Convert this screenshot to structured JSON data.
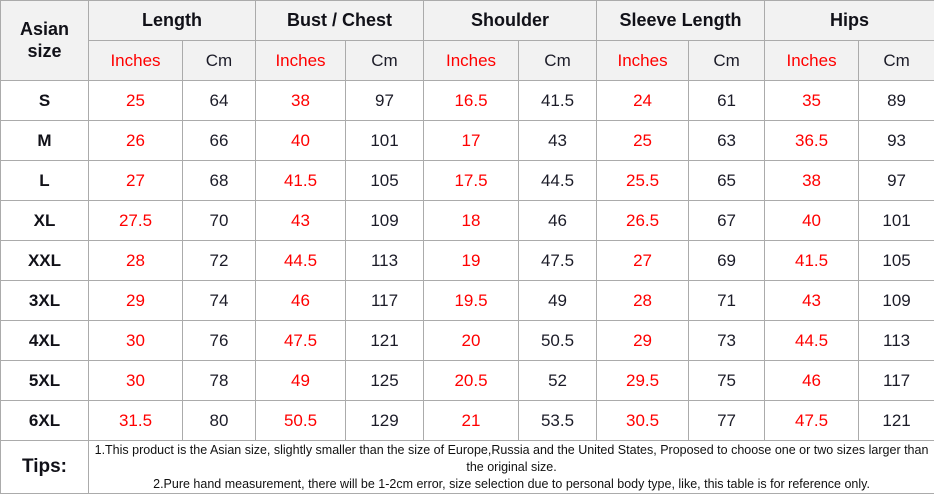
{
  "colors": {
    "accent_red": "#ff0000",
    "text_dark": "#1c1c28",
    "header_bg": "#f2f2f2",
    "grid_border": "#ababab"
  },
  "table": {
    "corner_header": "Asian size",
    "groups": [
      {
        "label": "Length"
      },
      {
        "label": "Bust / Chest"
      },
      {
        "label": "Shoulder"
      },
      {
        "label": "Sleeve Length"
      },
      {
        "label": "Hips"
      }
    ],
    "unit_inches": "Inches",
    "unit_cm": "Cm",
    "rows": [
      {
        "size": "S",
        "values": [
          "25",
          "64",
          "38",
          "97",
          "16.5",
          "41.5",
          "24",
          "61",
          "35",
          "89"
        ]
      },
      {
        "size": "M",
        "values": [
          "26",
          "66",
          "40",
          "101",
          "17",
          "43",
          "25",
          "63",
          "36.5",
          "93"
        ]
      },
      {
        "size": "L",
        "values": [
          "27",
          "68",
          "41.5",
          "105",
          "17.5",
          "44.5",
          "25.5",
          "65",
          "38",
          "97"
        ]
      },
      {
        "size": "XL",
        "values": [
          "27.5",
          "70",
          "43",
          "109",
          "18",
          "46",
          "26.5",
          "67",
          "40",
          "101"
        ]
      },
      {
        "size": "XXL",
        "values": [
          "28",
          "72",
          "44.5",
          "113",
          "19",
          "47.5",
          "27",
          "69",
          "41.5",
          "105"
        ]
      },
      {
        "size": "3XL",
        "values": [
          "29",
          "74",
          "46",
          "117",
          "19.5",
          "49",
          "28",
          "71",
          "43",
          "109"
        ]
      },
      {
        "size": "4XL",
        "values": [
          "30",
          "76",
          "47.5",
          "121",
          "20",
          "50.5",
          "29",
          "73",
          "44.5",
          "113"
        ]
      },
      {
        "size": "5XL",
        "values": [
          "30",
          "78",
          "49",
          "125",
          "20.5",
          "52",
          "29.5",
          "75",
          "46",
          "117"
        ]
      },
      {
        "size": "6XL",
        "values": [
          "31.5",
          "80",
          "50.5",
          "129",
          "21",
          "53.5",
          "30.5",
          "77",
          "47.5",
          "121"
        ]
      }
    ],
    "tips": {
      "label": "Tips:",
      "line1": "1.This product is the Asian size, slightly smaller than the size of Europe,Russia and the United States, Proposed to choose one or two sizes larger than the original size.",
      "line2": "2.Pure hand measurement, there will be 1-2cm error, size selection due to personal body type, like, this table is for reference only."
    }
  },
  "chart_data": {
    "type": "table",
    "title": "Asian size chart",
    "columns": [
      "Asian size",
      "Length (Inches)",
      "Length (Cm)",
      "Bust/Chest (Inches)",
      "Bust/Chest (Cm)",
      "Shoulder (Inches)",
      "Shoulder (Cm)",
      "Sleeve Length (Inches)",
      "Sleeve Length (Cm)",
      "Hips (Inches)",
      "Hips (Cm)"
    ],
    "rows": [
      [
        "S",
        25,
        64,
        38,
        97,
        16.5,
        41.5,
        24,
        61,
        35,
        89
      ],
      [
        "M",
        26,
        66,
        40,
        101,
        17,
        43,
        25,
        63,
        36.5,
        93
      ],
      [
        "L",
        27,
        68,
        41.5,
        105,
        17.5,
        44.5,
        25.5,
        65,
        38,
        97
      ],
      [
        "XL",
        27.5,
        70,
        43,
        109,
        18,
        46,
        26.5,
        67,
        40,
        101
      ],
      [
        "XXL",
        28,
        72,
        44.5,
        113,
        19,
        47.5,
        27,
        69,
        41.5,
        105
      ],
      [
        "3XL",
        29,
        74,
        46,
        117,
        19.5,
        49,
        28,
        71,
        43,
        109
      ],
      [
        "4XL",
        30,
        76,
        47.5,
        121,
        20,
        50.5,
        29,
        73,
        44.5,
        113
      ],
      [
        "5XL",
        30,
        78,
        49,
        125,
        20.5,
        52,
        29.5,
        75,
        46,
        117
      ],
      [
        "6XL",
        31.5,
        80,
        50.5,
        129,
        21,
        53.5,
        30.5,
        77,
        47.5,
        121
      ]
    ],
    "notes": [
      "1.This product is the Asian size, slightly smaller than the size of Europe,Russia and the United States, Proposed to choose one or two sizes larger than the original size.",
      "2.Pure hand measurement, there will be 1-2cm error, size selection due to personal body type, like, this table is for reference only."
    ]
  }
}
